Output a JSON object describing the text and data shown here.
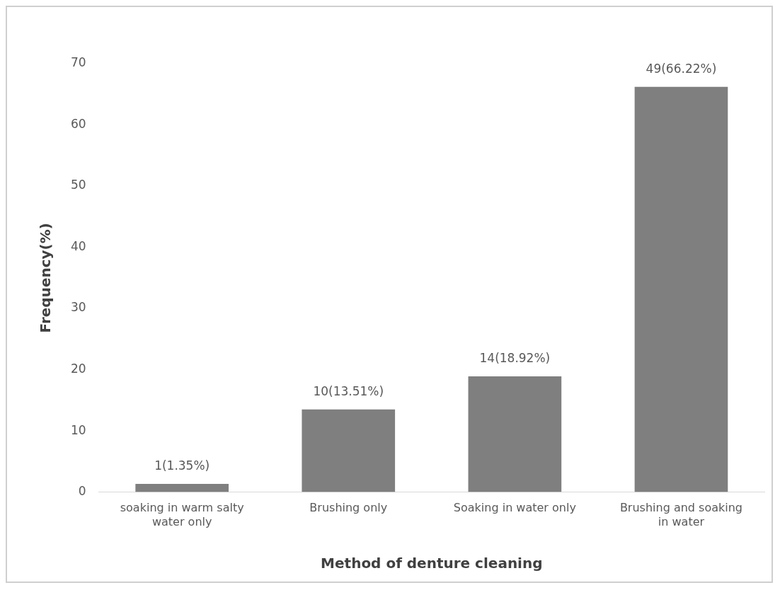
{
  "chart_data": {
    "type": "bar",
    "xlabel": "Method of denture cleaning",
    "ylabel": "Frequency(%)",
    "categories": [
      "soaking in warm salty water only",
      "Brushing only",
      "Soaking in water only",
      "Brushing and soaking in water"
    ],
    "values": [
      1.35,
      13.51,
      18.92,
      66.22
    ],
    "color": "#7f7f7f",
    "value_labels": [
      "1(1.35%)",
      "10(13.51%)",
      "14(18.92%)",
      "49(66.22%)"
    ],
    "ylim": [
      0,
      70
    ],
    "yticks": [
      0,
      10,
      20,
      30,
      40,
      50,
      60,
      70
    ],
    "grid": false,
    "legend": false
  }
}
